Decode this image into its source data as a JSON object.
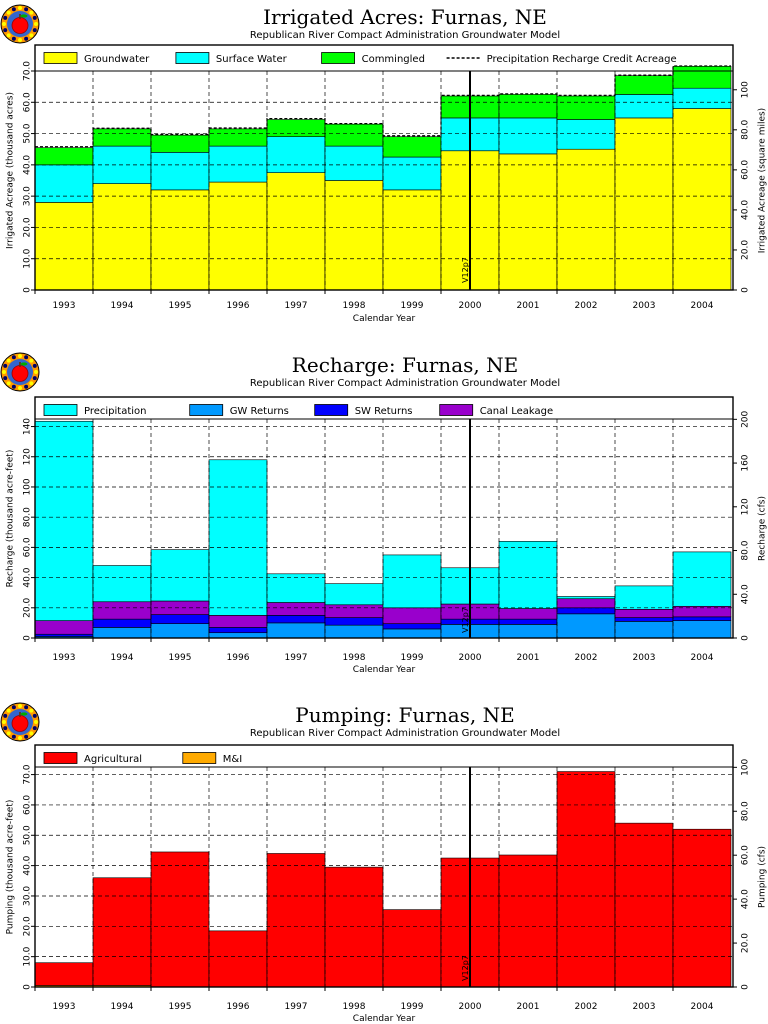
{
  "chart_data": [
    {
      "type": "area",
      "title": "Irrigated Acres: Furnas, NE",
      "subtitle": "Republican River Compact Administration Groundwater Model",
      "xlabel": "Calendar Year",
      "ylabel": "Irrigated Acreage (thousand acres)",
      "y2label": "Irrigated Acreage (square miles)",
      "marker_label": "V12p7",
      "marker_year": "2000.5",
      "ylim": [
        0,
        70
      ],
      "y2lim": [
        0,
        109.375
      ],
      "yticks": [
        "0",
        "10.0",
        "20.0",
        "30.0",
        "40.0",
        "50.0",
        "60.0",
        "70.0"
      ],
      "y2ticks": [
        "0",
        "20.0",
        "40.0",
        "60.0",
        "80.0",
        "100"
      ],
      "categories": [
        "1993",
        "1994",
        "1995",
        "1996",
        "1997",
        "1998",
        "1999",
        "2000",
        "2001",
        "2002",
        "2003",
        "2004"
      ],
      "legend_placement": "top",
      "grid": true,
      "series": [
        {
          "name": "Groundwater",
          "color": "#ffff00",
          "values": [
            28.0,
            34.0,
            32.0,
            34.5,
            37.5,
            35.0,
            32.0,
            44.5,
            43.5,
            45.0,
            55.0,
            58.0
          ]
        },
        {
          "name": "Surface Water",
          "color": "#00ffff",
          "values": [
            12.0,
            12.0,
            12.0,
            11.5,
            11.5,
            11.0,
            10.5,
            10.5,
            11.5,
            9.5,
            7.5,
            6.5
          ]
        },
        {
          "name": "Commingled",
          "color": "#00ff00",
          "values": [
            5.5,
            5.5,
            5.5,
            5.5,
            5.5,
            7.0,
            6.5,
            7.0,
            7.5,
            7.5,
            6.0,
            7.0
          ]
        }
      ],
      "line_series": {
        "name": "Precipitation Recharge Credit Acreage",
        "values": [
          45.8,
          51.7,
          49.7,
          51.8,
          54.8,
          53.2,
          49.3,
          62.2,
          62.7,
          62.2,
          68.7,
          71.6
        ]
      }
    },
    {
      "type": "area",
      "title": "Recharge: Furnas, NE",
      "subtitle": "Republican River Compact Administration Groundwater Model",
      "xlabel": "Calendar Year",
      "ylabel": "Recharge (thousand acre-feet)",
      "y2label": "Recharge (cfs)",
      "marker_label": "V12p7",
      "marker_year": "2000.5",
      "ylim": [
        0,
        145
      ],
      "y2lim": [
        0,
        200.3
      ],
      "yticks": [
        "0",
        "20.0",
        "40.0",
        "60.0",
        "80.0",
        "100",
        "120",
        "140"
      ],
      "y2ticks": [
        "0",
        "40.0",
        "80.0",
        "120",
        "160",
        "200"
      ],
      "categories": [
        "1993",
        "1994",
        "1995",
        "1996",
        "1997",
        "1998",
        "1999",
        "2000",
        "2001",
        "2002",
        "2003",
        "2004"
      ],
      "legend_placement": "top",
      "grid": true,
      "series": [
        {
          "name": "GW Returns",
          "color": "#0099ff",
          "values": [
            1.0,
            7.0,
            9.5,
            3.5,
            10.0,
            8.5,
            6.0,
            9.0,
            9.0,
            16.0,
            11.0,
            11.5
          ]
        },
        {
          "name": "SW Returns",
          "color": "#0000ff",
          "values": [
            1.5,
            5.5,
            6.0,
            3.5,
            5.0,
            5.0,
            3.5,
            3.5,
            3.5,
            4.0,
            2.5,
            2.5
          ]
        },
        {
          "name": "Canal Leakage",
          "color": "#9900cc",
          "values": [
            9.0,
            11.5,
            9.0,
            8.0,
            8.5,
            8.5,
            10.5,
            10.0,
            7.0,
            6.0,
            5.5,
            7.0
          ]
        },
        {
          "name": "Precipitation",
          "color": "#00ffff",
          "values": [
            132.0,
            24.0,
            34.0,
            103.0,
            19.0,
            14.0,
            35.0,
            24.0,
            44.5,
            1.5,
            15.5,
            36.0
          ]
        }
      ]
    },
    {
      "type": "area",
      "title": "Pumping: Furnas, NE",
      "subtitle": "Republican River Compact Administration Groundwater Model",
      "xlabel": "Calendar Year",
      "ylabel": "Pumping (thousand acre-feet)",
      "y2label": "Pumping (cfs)",
      "marker_label": "V12p7",
      "marker_year": "2000.5",
      "ylim": [
        0,
        72.5
      ],
      "y2lim": [
        0,
        100.15
      ],
      "yticks": [
        "0",
        "10.0",
        "20.0",
        "30.0",
        "40.0",
        "50.0",
        "60.0",
        "70.0"
      ],
      "y2ticks": [
        "0",
        "20.0",
        "40.0",
        "60.0",
        "80.0",
        "100"
      ],
      "categories": [
        "1993",
        "1994",
        "1995",
        "1996",
        "1997",
        "1998",
        "1999",
        "2000",
        "2001",
        "2002",
        "2003",
        "2004"
      ],
      "legend_placement": "top",
      "grid": true,
      "series": [
        {
          "name": "M&I",
          "color": "#ffaa00",
          "values": [
            0.5,
            0.5,
            0,
            0,
            0,
            0,
            0,
            0,
            0,
            0,
            0,
            0
          ]
        },
        {
          "name": "Agricultural",
          "color": "#ff0000",
          "values": [
            7.5,
            35.5,
            44.5,
            18.5,
            44.0,
            39.5,
            25.5,
            42.5,
            43.5,
            71.0,
            54.0,
            52.0
          ]
        }
      ],
      "legend_order": [
        "Agricultural",
        "M&I"
      ]
    }
  ]
}
